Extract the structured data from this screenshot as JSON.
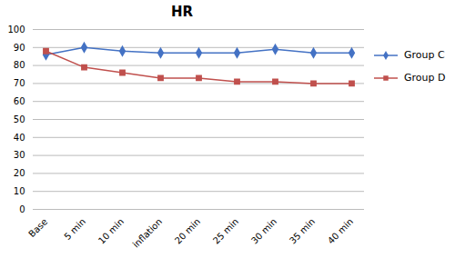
{
  "chart_data": {
    "type": "line",
    "title": "HR",
    "categories": [
      "Base",
      "5 min",
      "10 min",
      "inflation",
      "20 min",
      "25 min",
      "30 min",
      "35 min",
      "40 min"
    ],
    "series": [
      {
        "name": "Group C",
        "color": "#4472C4",
        "marker": "diamond",
        "values": [
          86,
          90,
          88,
          87,
          87,
          87,
          89,
          87,
          87
        ]
      },
      {
        "name": "Group D",
        "color": "#C0504D",
        "marker": "square",
        "values": [
          88,
          79,
          76,
          73,
          73,
          71,
          71,
          70,
          70
        ]
      }
    ],
    "ylim": [
      0,
      100
    ],
    "yticks": [
      0,
      10,
      20,
      30,
      40,
      50,
      60,
      70,
      80,
      90,
      100
    ],
    "grid": true,
    "legend": "right"
  }
}
